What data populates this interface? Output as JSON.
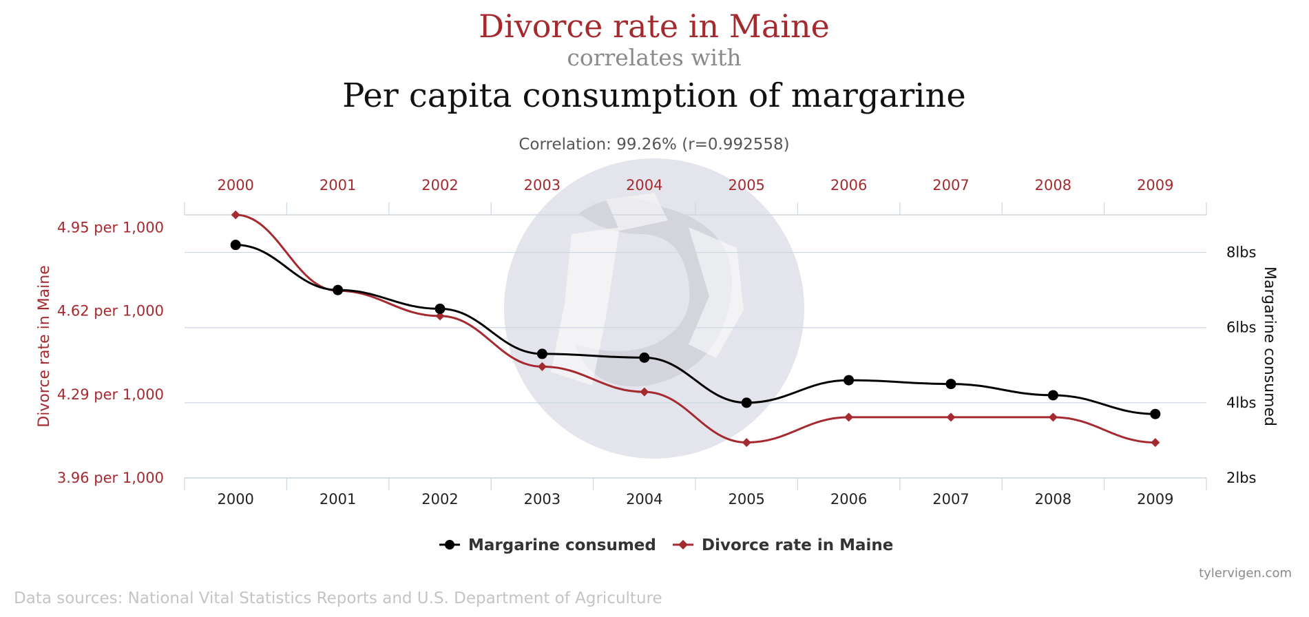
{
  "header": {
    "title_a": "Divorce rate in Maine",
    "connector": "correlates with",
    "title_b": "Per capita consumption of margarine",
    "correlation": "Correlation: 99.26% (r=0.992558)"
  },
  "chart_data": {
    "type": "line",
    "categories": [
      "2000",
      "2001",
      "2002",
      "2003",
      "2004",
      "2005",
      "2006",
      "2007",
      "2008",
      "2009"
    ],
    "series": [
      {
        "name": "Divorce rate in Maine",
        "axis": "left",
        "marker": "diamond",
        "color": "#a52a2f",
        "values": [
          5.0,
          4.7,
          4.6,
          4.4,
          4.3,
          4.1,
          4.2,
          4.2,
          4.2,
          4.1
        ]
      },
      {
        "name": "Margarine consumed",
        "axis": "right",
        "marker": "circle",
        "color": "#000000",
        "values": [
          8.2,
          7.0,
          6.5,
          5.3,
          5.2,
          4.0,
          4.6,
          4.5,
          4.2,
          3.7
        ]
      }
    ],
    "left_axis": {
      "title": "Divorce rate in Maine",
      "range": [
        3.96,
        5.0
      ],
      "ticks": [
        {
          "value": 4.95,
          "label": "4.95 per 1,000"
        },
        {
          "value": 4.62,
          "label": "4.62 per 1,000"
        },
        {
          "value": 4.29,
          "label": "4.29 per 1,000"
        },
        {
          "value": 3.96,
          "label": "3.96 per 1,000"
        }
      ]
    },
    "right_axis": {
      "title": "Margarine consumed",
      "range": [
        2,
        9
      ],
      "ticks": [
        {
          "value": 8,
          "label": "8lbs"
        },
        {
          "value": 6,
          "label": "6lbs"
        },
        {
          "value": 4,
          "label": "4lbs"
        },
        {
          "value": 2,
          "label": "2lbs"
        }
      ]
    },
    "grid": true,
    "legend_position": "bottom-center",
    "legend_order": [
      "Margarine consumed",
      "Divorce rate in Maine"
    ]
  },
  "footer": {
    "credit": "tylervigen.com",
    "sources": "Data sources: National Vital Statistics Reports and U.S. Department of Agriculture"
  }
}
